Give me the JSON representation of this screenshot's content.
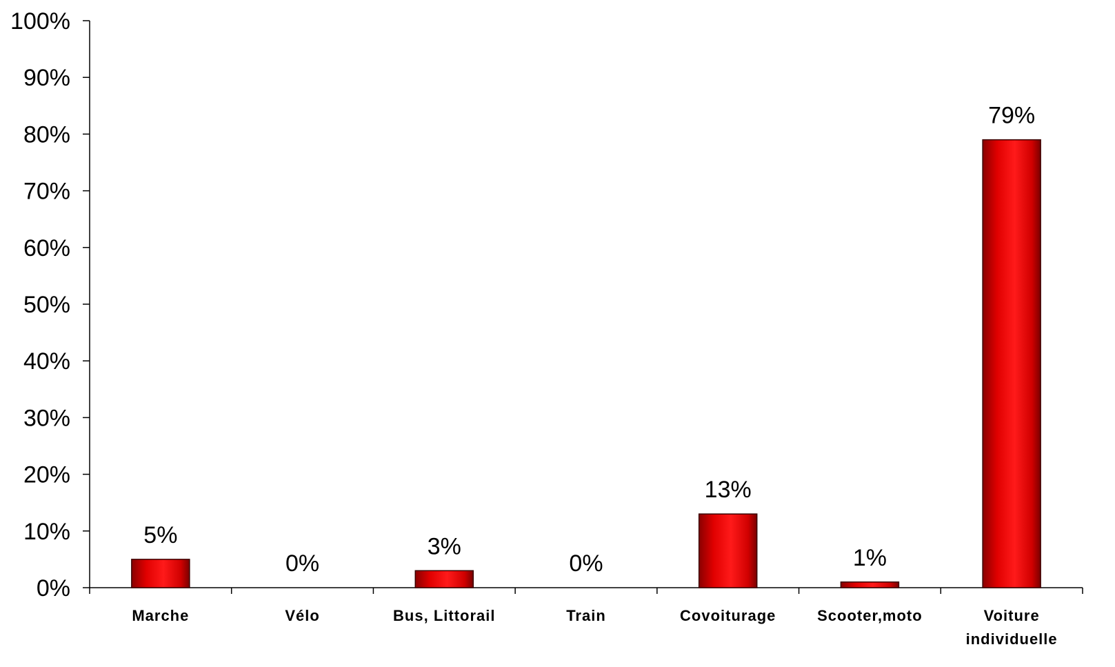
{
  "chart_data": {
    "type": "bar",
    "title": "",
    "xlabel": "",
    "ylabel": "",
    "categories": [
      "Marche",
      "Vélo",
      "Bus, Littorail",
      "Train",
      "Covoiturage",
      "Scooter,moto",
      "Voiture individuelle"
    ],
    "values": [
      5,
      0,
      3,
      0,
      13,
      1,
      79
    ],
    "data_labels": [
      "5%",
      "0%",
      "3%",
      "0%",
      "13%",
      "1%",
      "79%"
    ],
    "ylim": [
      0,
      100
    ],
    "yticks": [
      "0%",
      "10%",
      "20%",
      "30%",
      "40%",
      "50%",
      "60%",
      "70%",
      "80%",
      "90%",
      "100%"
    ],
    "grid": false,
    "legend": "none",
    "bar_color": "#e00000",
    "bar_edge_color": "#3a0000"
  }
}
